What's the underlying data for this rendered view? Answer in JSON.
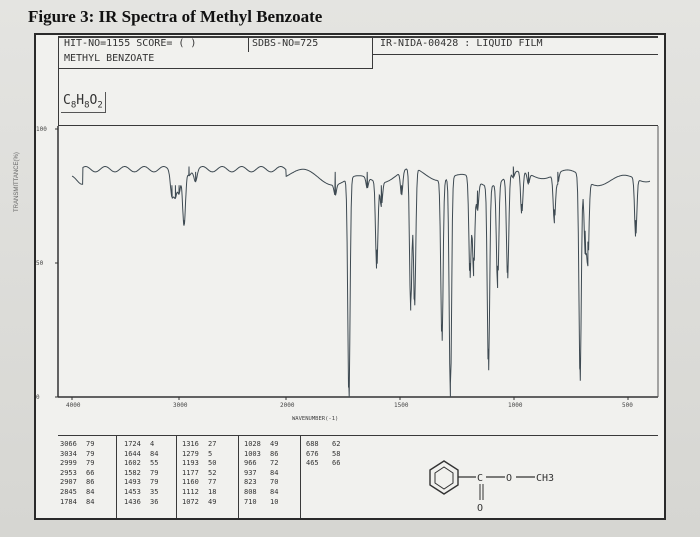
{
  "figure_title": "Figure 3: IR Spectra of Methyl Benzoate",
  "header": {
    "hit_no": "HIT-NO=1155 SCORE= (   )",
    "sdbs_no": "SDBS-NO=725",
    "ir_nida": "IR-NIDA-00428 : LIQUID FILM",
    "compound_name": "METHYL BENZOATE"
  },
  "formula": {
    "c": "C",
    "c_n": "8",
    "h": "H",
    "h_n": "8",
    "o": "O",
    "o_n": "2"
  },
  "structure": {
    "carbonyl_c": "C",
    "ester_o": "O",
    "methyl": "CH3",
    "carbonyl_o": "O"
  },
  "chart_data": {
    "type": "line",
    "title": "",
    "xlabel": "WAVENUMBER(-1)",
    "ylabel": "TRANSMITTANCE(%)",
    "x_reversed": true,
    "x_ticks": [
      {
        "label": "4000",
        "value": 4000
      },
      {
        "label": "3000",
        "value": 3000
      },
      {
        "label": "2000",
        "value": 2000
      },
      {
        "label": "1500",
        "value": 1500
      },
      {
        "label": "1000",
        "value": 1000
      },
      {
        "label": "500",
        "value": 500
      }
    ],
    "y_ticks": [
      {
        "label": "100",
        "value": 100
      },
      {
        "label": "50",
        "value": 50
      },
      {
        "label": "0",
        "value": 0
      }
    ],
    "xlim": [
      4000,
      400
    ],
    "ylim": [
      0,
      100
    ],
    "baseline": 82,
    "peak_table": [
      {
        "wavenumber": 3066,
        "transmittance": 79
      },
      {
        "wavenumber": 3034,
        "transmittance": 79
      },
      {
        "wavenumber": 2999,
        "transmittance": 79
      },
      {
        "wavenumber": 2953,
        "transmittance": 66
      },
      {
        "wavenumber": 2907,
        "transmittance": 86
      },
      {
        "wavenumber": 2845,
        "transmittance": 84
      },
      {
        "wavenumber": 1784,
        "transmittance": 84
      },
      {
        "wavenumber": 1724,
        "transmittance": 4
      },
      {
        "wavenumber": 1644,
        "transmittance": 84
      },
      {
        "wavenumber": 1602,
        "transmittance": 55
      },
      {
        "wavenumber": 1582,
        "transmittance": 79
      },
      {
        "wavenumber": 1493,
        "transmittance": 79
      },
      {
        "wavenumber": 1453,
        "transmittance": 35
      },
      {
        "wavenumber": 1436,
        "transmittance": 36
      },
      {
        "wavenumber": 1316,
        "transmittance": 27
      },
      {
        "wavenumber": 1279,
        "transmittance": 5
      },
      {
        "wavenumber": 1193,
        "transmittance": 50
      },
      {
        "wavenumber": 1177,
        "transmittance": 52
      },
      {
        "wavenumber": 1160,
        "transmittance": 77
      },
      {
        "wavenumber": 1112,
        "transmittance": 18
      },
      {
        "wavenumber": 1072,
        "transmittance": 49
      },
      {
        "wavenumber": 1028,
        "transmittance": 49
      },
      {
        "wavenumber": 1003,
        "transmittance": 86
      },
      {
        "wavenumber": 966,
        "transmittance": 72
      },
      {
        "wavenumber": 937,
        "transmittance": 84
      },
      {
        "wavenumber": 823,
        "transmittance": 70
      },
      {
        "wavenumber": 808,
        "transmittance": 84
      },
      {
        "wavenumber": 710,
        "transmittance": 10
      },
      {
        "wavenumber": 688,
        "transmittance": 62
      },
      {
        "wavenumber": 676,
        "transmittance": 58
      },
      {
        "wavenumber": 465,
        "transmittance": 66
      }
    ],
    "table_columns": [
      [
        [
          "3066",
          "79"
        ],
        [
          "3034",
          "79"
        ],
        [
          "2999",
          "79"
        ],
        [
          "2953",
          "66"
        ],
        [
          "2907",
          "86"
        ],
        [
          "2845",
          "84"
        ],
        [
          "1784",
          "84"
        ]
      ],
      [
        [
          "1724",
          "4"
        ],
        [
          "1644",
          "84"
        ],
        [
          "1602",
          "55"
        ],
        [
          "1582",
          "79"
        ],
        [
          "1493",
          "79"
        ],
        [
          "1453",
          "35"
        ],
        [
          "1436",
          "36"
        ]
      ],
      [
        [
          "1316",
          "27"
        ],
        [
          "1279",
          "5"
        ],
        [
          "1193",
          "50"
        ],
        [
          "1177",
          "52"
        ],
        [
          "1160",
          "77"
        ],
        [
          "1112",
          "18"
        ],
        [
          "1072",
          "49"
        ]
      ],
      [
        [
          "1028",
          "49"
        ],
        [
          "1003",
          "86"
        ],
        [
          "966",
          "72"
        ],
        [
          "937",
          "84"
        ],
        [
          "823",
          "70"
        ],
        [
          "808",
          "84"
        ],
        [
          "710",
          "10"
        ]
      ],
      [
        [
          "688",
          "62"
        ],
        [
          "676",
          "58"
        ],
        [
          "465",
          "66"
        ]
      ]
    ]
  }
}
